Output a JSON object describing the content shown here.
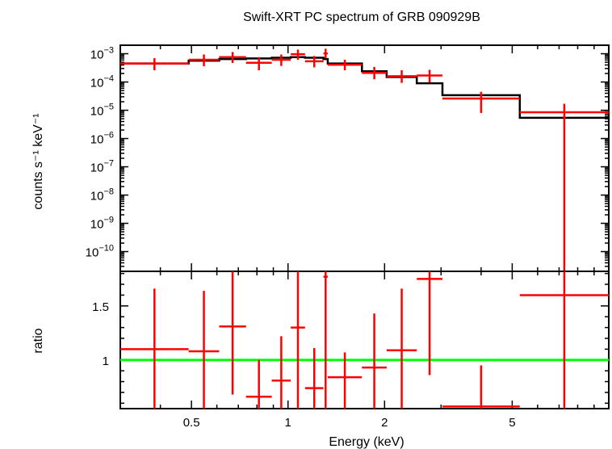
{
  "chart_data": [
    {
      "type": "line",
      "title": "Swift-XRT PC spectrum of GRB 090929B",
      "ylabel": "counts s⁻¹ keV⁻¹",
      "xlabel": "",
      "xscale": "log",
      "yscale": "log",
      "xlim": [
        0.3,
        10
      ],
      "ylim": [
        2e-11,
        0.002
      ],
      "grid": false,
      "y_tick_labels": [
        {
          "value": 0.001,
          "mant": "10",
          "exp": "−3"
        },
        {
          "value": 0.0001,
          "mant": "10",
          "exp": "−4"
        },
        {
          "value": 1e-05,
          "mant": "10",
          "exp": "−5"
        },
        {
          "value": 1e-06,
          "mant": "10",
          "exp": "−6"
        },
        {
          "value": 1e-07,
          "mant": "10",
          "exp": "−7"
        },
        {
          "value": 1e-08,
          "mant": "10",
          "exp": "−8"
        },
        {
          "value": 1e-09,
          "mant": "10",
          "exp": "−9"
        },
        {
          "value": 1e-10,
          "mant": "10",
          "exp": "−10"
        }
      ],
      "series": [
        {
          "color": "#ff0000",
          "style": "errorbars",
          "points": [
            {
              "xlo": 0.3,
              "xhi": 0.49,
              "y": 0.00045,
              "ylo": 0.00026,
              "yhi": 0.0007
            },
            {
              "xlo": 0.49,
              "xhi": 0.61,
              "y": 0.00061,
              "ylo": 0.00036,
              "yhi": 0.00094
            },
            {
              "xlo": 0.61,
              "xhi": 0.74,
              "y": 0.00076,
              "ylo": 0.00047,
              "yhi": 0.00115
            },
            {
              "xlo": 0.74,
              "xhi": 0.89,
              "y": 0.00048,
              "ylo": 0.00026,
              "yhi": 0.00076
            },
            {
              "xlo": 0.89,
              "xhi": 1.02,
              "y": 0.00061,
              "ylo": 0.00037,
              "yhi": 0.00094
            },
            {
              "xlo": 1.02,
              "xhi": 1.13,
              "y": 0.00096,
              "ylo": 0.00061,
              "yhi": 0.0014
            },
            {
              "xlo": 1.13,
              "xhi": 1.29,
              "y": 0.00054,
              "ylo": 0.00033,
              "yhi": 0.00083
            },
            {
              "xlo": 1.29,
              "xhi": 1.33,
              "y": 0.00102,
              "ylo": 0.00069,
              "yhi": 0.0015
            },
            {
              "xlo": 1.33,
              "xhi": 1.7,
              "y": 0.00041,
              "ylo": 0.00026,
              "yhi": 0.00061
            },
            {
              "xlo": 1.7,
              "xhi": 2.03,
              "y": 0.00021,
              "ylo": 0.000125,
              "yhi": 0.00034
            },
            {
              "xlo": 2.03,
              "xhi": 2.52,
              "y": 0.00016,
              "ylo": 9.3e-05,
              "yhi": 0.00026
            },
            {
              "xlo": 2.52,
              "xhi": 3.03,
              "y": 0.00017,
              "ylo": 9.6e-05,
              "yhi": 0.00027
            },
            {
              "xlo": 3.03,
              "xhi": 5.28,
              "y": 2.6e-05,
              "ylo": 8e-06,
              "yhi": 4.5e-05
            },
            {
              "xlo": 5.28,
              "xhi": 10.0,
              "y": 8.5e-06,
              "ylo": 2e-11,
              "yhi": 1.7e-05
            }
          ]
        },
        {
          "color": "#000000",
          "style": "step",
          "points": [
            {
              "xlo": 0.3,
              "xhi": 0.49,
              "y": 0.00045
            },
            {
              "xlo": 0.49,
              "xhi": 0.61,
              "y": 0.00057
            },
            {
              "xlo": 0.61,
              "xhi": 0.74,
              "y": 0.00065
            },
            {
              "xlo": 0.74,
              "xhi": 0.89,
              "y": 0.00068
            },
            {
              "xlo": 0.89,
              "xhi": 1.02,
              "y": 0.00072
            },
            {
              "xlo": 1.02,
              "xhi": 1.13,
              "y": 0.00076
            },
            {
              "xlo": 1.13,
              "xhi": 1.29,
              "y": 0.00072
            },
            {
              "xlo": 1.29,
              "xhi": 1.33,
              "y": 0.00065
            },
            {
              "xlo": 1.33,
              "xhi": 1.7,
              "y": 0.00045
            },
            {
              "xlo": 1.7,
              "xhi": 2.03,
              "y": 0.00024
            },
            {
              "xlo": 2.03,
              "xhi": 2.52,
              "y": 0.00015
            },
            {
              "xlo": 2.52,
              "xhi": 3.03,
              "y": 9e-05
            },
            {
              "xlo": 3.03,
              "xhi": 5.28,
              "y": 3.4e-05
            },
            {
              "xlo": 5.28,
              "xhi": 10.0,
              "y": 5.4e-06
            }
          ]
        }
      ]
    },
    {
      "type": "line",
      "title": "",
      "ylabel": "ratio",
      "xlabel": "Energy (keV)",
      "xscale": "log",
      "yscale": "linear",
      "xlim": [
        0.3,
        10
      ],
      "ylim": [
        0.55,
        1.82
      ],
      "grid": false,
      "x_ticks": [
        0.5,
        1,
        2,
        5
      ],
      "x_tick_labels": [
        "0.5",
        "1",
        "2",
        "5"
      ],
      "y_ticks": [
        1,
        1.5
      ],
      "y_tick_labels": [
        "1",
        "1.5"
      ],
      "reference_line": {
        "y": 1,
        "color": "#00ff00"
      },
      "series": [
        {
          "color": "#ff0000",
          "style": "errorbars",
          "points": [
            {
              "xlo": 0.3,
              "xhi": 0.49,
              "y": 1.1,
              "ylo": 0.55,
              "yhi": 1.66
            },
            {
              "xlo": 0.49,
              "xhi": 0.61,
              "y": 1.08,
              "ylo": 0.55,
              "yhi": 1.64
            },
            {
              "xlo": 0.61,
              "xhi": 0.74,
              "y": 1.31,
              "ylo": 0.68,
              "yhi": 1.82
            },
            {
              "xlo": 0.74,
              "xhi": 0.89,
              "y": 0.66,
              "ylo": 0.55,
              "yhi": 1.0
            },
            {
              "xlo": 0.89,
              "xhi": 1.02,
              "y": 0.81,
              "ylo": 0.55,
              "yhi": 1.22
            },
            {
              "xlo": 1.02,
              "xhi": 1.13,
              "y": 1.3,
              "ylo": 0.55,
              "yhi": 1.82
            },
            {
              "xlo": 1.13,
              "xhi": 1.29,
              "y": 0.74,
              "ylo": 0.55,
              "yhi": 1.11
            },
            {
              "xlo": 1.29,
              "xhi": 1.33,
              "y": 1.77,
              "ylo": 0.55,
              "yhi": 1.82
            },
            {
              "xlo": 1.33,
              "xhi": 1.7,
              "y": 0.84,
              "ylo": 0.55,
              "yhi": 1.07
            },
            {
              "xlo": 1.7,
              "xhi": 2.03,
              "y": 0.93,
              "ylo": 0.55,
              "yhi": 1.43
            },
            {
              "xlo": 2.03,
              "xhi": 2.52,
              "y": 1.09,
              "ylo": 0.55,
              "yhi": 1.66
            },
            {
              "xlo": 2.52,
              "xhi": 3.03,
              "y": 1.75,
              "ylo": 0.86,
              "yhi": 1.82
            },
            {
              "xlo": 3.03,
              "xhi": 5.28,
              "y": 0.57,
              "ylo": 0.55,
              "yhi": 0.95
            },
            {
              "xlo": 5.28,
              "xhi": 10.0,
              "y": 1.6,
              "ylo": 0.55,
              "yhi": 1.82
            }
          ]
        }
      ]
    }
  ]
}
